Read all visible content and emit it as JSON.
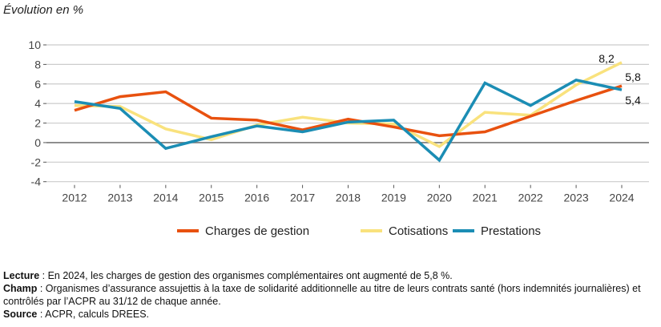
{
  "chart_data": {
    "type": "line",
    "title": "Évolution en %",
    "x": [
      "2012",
      "2013",
      "2014",
      "2015",
      "2016",
      "2017",
      "2018",
      "2019",
      "2020",
      "2021",
      "2022",
      "2023",
      "2024"
    ],
    "ylim": [
      -4,
      10
    ],
    "yticks": [
      "-4",
      "-2",
      "0",
      "2",
      "4",
      "6",
      "8",
      "10"
    ],
    "grid": true,
    "legend_position": "bottom",
    "series": [
      {
        "name": "Charges de gestion",
        "color": "#E8510F",
        "values": [
          3.3,
          4.7,
          5.2,
          2.5,
          2.3,
          1.3,
          2.4,
          1.6,
          0.7,
          1.1,
          2.7,
          4.3,
          5.8
        ],
        "end_label": "5,8"
      },
      {
        "name": "Cotisations",
        "color": "#F9E27D",
        "values": [
          3.8,
          3.7,
          1.4,
          0.3,
          1.8,
          2.6,
          2.0,
          1.9,
          -0.4,
          3.1,
          2.8,
          5.9,
          8.2
        ],
        "end_label": "8,2"
      },
      {
        "name": "Prestations",
        "color": "#1B8DB4",
        "values": [
          4.2,
          3.5,
          -0.6,
          0.6,
          1.7,
          1.1,
          2.1,
          2.3,
          -1.8,
          6.1,
          3.8,
          6.4,
          5.4
        ],
        "end_label": "5,4"
      }
    ]
  },
  "notes": {
    "lecture_label": "Lecture",
    "lecture_text": " : En 2024, les charges de gestion des organismes complémentaires ont augmenté de 5,8 %.",
    "champ_label": "Champ",
    "champ_text": " : Organismes d’assurance assujettis à la taxe de solidarité additionnelle au titre de leurs contrats santé (hors indemnités journalières) et contrôlés par l’ACPR au 31/12 de chaque année.",
    "source_label": "Source",
    "source_text": " : ACPR, calculs DREES."
  }
}
